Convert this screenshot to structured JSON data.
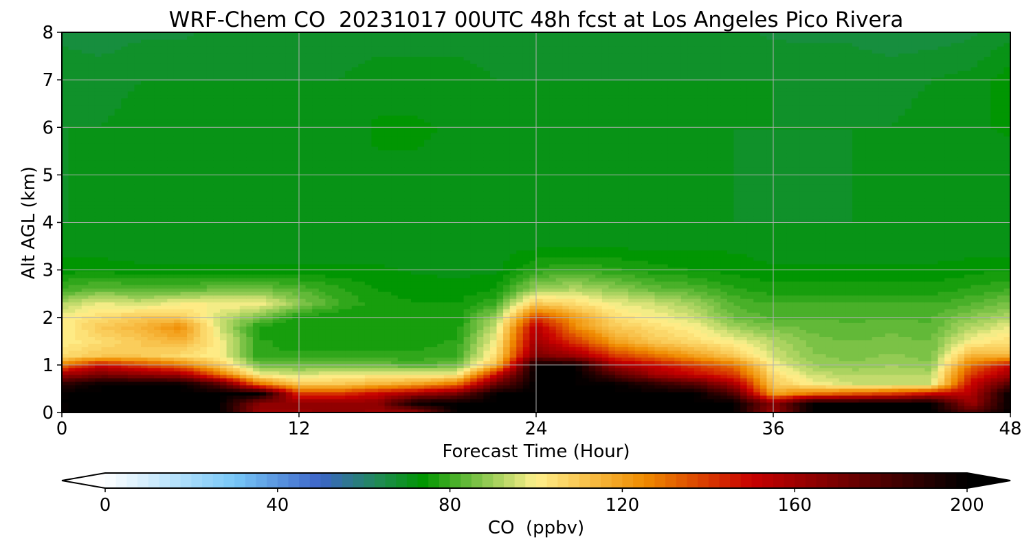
{
  "chart_data": {
    "type": "heatmap",
    "title": "WRF-Chem CO  20231017 00UTC 48h fcst at Los Angeles Pico Rivera",
    "xlabel": "Forecast Time (Hour)",
    "ylabel": "Alt AGL (km)",
    "xlim": [
      0,
      48
    ],
    "ylim": [
      0,
      8
    ],
    "x_ticks": [
      0,
      12,
      24,
      36,
      48
    ],
    "y_ticks": [
      0,
      1,
      2,
      3,
      4,
      5,
      6,
      7,
      8
    ],
    "grid": true,
    "x_hours": [
      0,
      2,
      4,
      6,
      8,
      10,
      12,
      14,
      16,
      18,
      20,
      22,
      24,
      26,
      28,
      30,
      32,
      34,
      36,
      38,
      40,
      42,
      44,
      46,
      48
    ],
    "z_km": [
      0,
      0.2,
      0.4,
      0.6,
      0.8,
      1.0,
      1.2,
      1.5,
      1.8,
      2.0,
      2.3,
      2.6,
      3.0,
      3.5,
      4.0,
      5.0,
      6.0,
      7.0,
      8.0
    ],
    "co_ppbv": [
      [
        200,
        200,
        200,
        200,
        200,
        160,
        160,
        165,
        160,
        160,
        200,
        200,
        200,
        200,
        200,
        200,
        200,
        200,
        160,
        200,
        200,
        200,
        200,
        180,
        200
      ],
      [
        200,
        200,
        200,
        200,
        200,
        165,
        165,
        165,
        165,
        200,
        200,
        200,
        200,
        200,
        200,
        200,
        200,
        200,
        165,
        200,
        200,
        200,
        200,
        160,
        200
      ],
      [
        200,
        200,
        200,
        200,
        200,
        200,
        140,
        140,
        150,
        160,
        170,
        200,
        200,
        200,
        200,
        200,
        200,
        180,
        120,
        130,
        135,
        140,
        150,
        155,
        200
      ],
      [
        190,
        200,
        200,
        200,
        180,
        130,
        110,
        110,
        115,
        120,
        130,
        175,
        200,
        200,
        200,
        190,
        180,
        160,
        110,
        100,
        95,
        95,
        95,
        150,
        180
      ],
      [
        160,
        170,
        165,
        160,
        130,
        100,
        95,
        100,
        100,
        100,
        100,
        150,
        200,
        200,
        180,
        160,
        150,
        140,
        105,
        95,
        92,
        92,
        92,
        140,
        160
      ],
      [
        130,
        150,
        140,
        130,
        110,
        85,
        85,
        85,
        85,
        82,
        85,
        115,
        200,
        200,
        160,
        150,
        140,
        130,
        100,
        90,
        88,
        90,
        88,
        130,
        150
      ],
      [
        105,
        110,
        110,
        105,
        100,
        78,
        78,
        78,
        78,
        78,
        80,
        105,
        170,
        160,
        140,
        130,
        120,
        110,
        95,
        88,
        86,
        88,
        86,
        115,
        115
      ],
      [
        100,
        105,
        110,
        115,
        100,
        78,
        76,
        76,
        76,
        76,
        78,
        100,
        160,
        140,
        120,
        110,
        105,
        100,
        92,
        86,
        85,
        86,
        85,
        100,
        105
      ],
      [
        100,
        110,
        115,
        125,
        95,
        76,
        75,
        75,
        75,
        75,
        76,
        95,
        155,
        125,
        110,
        105,
        100,
        90,
        86,
        84,
        83,
        84,
        83,
        92,
        98
      ],
      [
        100,
        105,
        110,
        110,
        95,
        85,
        76,
        75,
        75,
        75,
        76,
        90,
        140,
        120,
        105,
        100,
        95,
        85,
        82,
        82,
        82,
        82,
        82,
        88,
        92
      ],
      [
        92,
        98,
        95,
        100,
        100,
        100,
        88,
        80,
        76,
        75,
        75,
        80,
        110,
        105,
        98,
        95,
        90,
        82,
        80,
        80,
        80,
        80,
        80,
        82,
        86
      ],
      [
        80,
        84,
        82,
        82,
        85,
        85,
        82,
        78,
        75,
        74,
        73,
        75,
        90,
        92,
        88,
        84,
        82,
        78,
        76,
        76,
        76,
        76,
        76,
        78,
        80
      ],
      [
        74,
        74,
        73,
        73,
        73,
        73,
        73,
        73,
        73,
        72,
        72,
        72,
        78,
        80,
        78,
        76,
        75,
        74,
        73,
        73,
        73,
        73,
        73,
        74,
        75
      ],
      [
        71,
        71,
        71,
        71,
        71,
        71,
        71,
        71,
        71,
        71,
        71,
        71,
        72,
        72,
        72,
        72,
        72,
        72,
        71,
        71,
        71,
        71,
        71,
        71,
        71
      ],
      [
        70,
        70,
        70,
        70,
        70,
        70,
        70,
        70,
        70,
        70,
        70,
        70,
        70,
        70,
        70,
        70,
        70,
        70,
        70,
        70,
        70,
        70,
        70,
        70,
        70
      ],
      [
        70,
        70,
        70,
        70,
        70,
        70,
        70,
        71,
        72,
        72,
        71,
        70,
        70,
        70,
        70,
        70,
        70,
        70,
        69,
        69,
        70,
        70,
        70,
        70,
        71
      ],
      [
        70,
        70,
        71,
        71,
        71,
        70,
        70,
        71,
        73,
        73,
        72,
        71,
        70,
        71,
        70,
        70,
        70,
        70,
        70,
        70,
        70,
        70,
        71,
        72,
        73
      ],
      [
        69,
        69,
        70,
        70,
        70,
        70,
        70,
        70,
        71,
        71,
        71,
        70,
        70,
        70,
        70,
        70,
        70,
        70,
        70,
        69,
        69,
        69,
        70,
        71,
        74
      ],
      [
        67,
        66,
        67,
        67,
        68,
        69,
        69,
        69,
        69,
        69,
        69,
        69,
        70,
        69,
        69,
        69,
        69,
        68,
        67,
        67,
        67,
        66,
        66,
        67,
        69
      ]
    ],
    "colorbar": {
      "label": "CO  (ppbv)",
      "ticks": [
        0,
        40,
        80,
        120,
        160,
        200
      ],
      "range": [
        0,
        200
      ],
      "extend": "both",
      "colors": [
        "#ffffff",
        "#78c8f8",
        "#3c64c8",
        "#1e8c50",
        "#009600",
        "#8cc850",
        "#fff08c",
        "#f08c00",
        "#c80000",
        "#000000"
      ],
      "color_positions": [
        0,
        30,
        50,
        64,
        74,
        88,
        100,
        125,
        150,
        200
      ]
    }
  }
}
